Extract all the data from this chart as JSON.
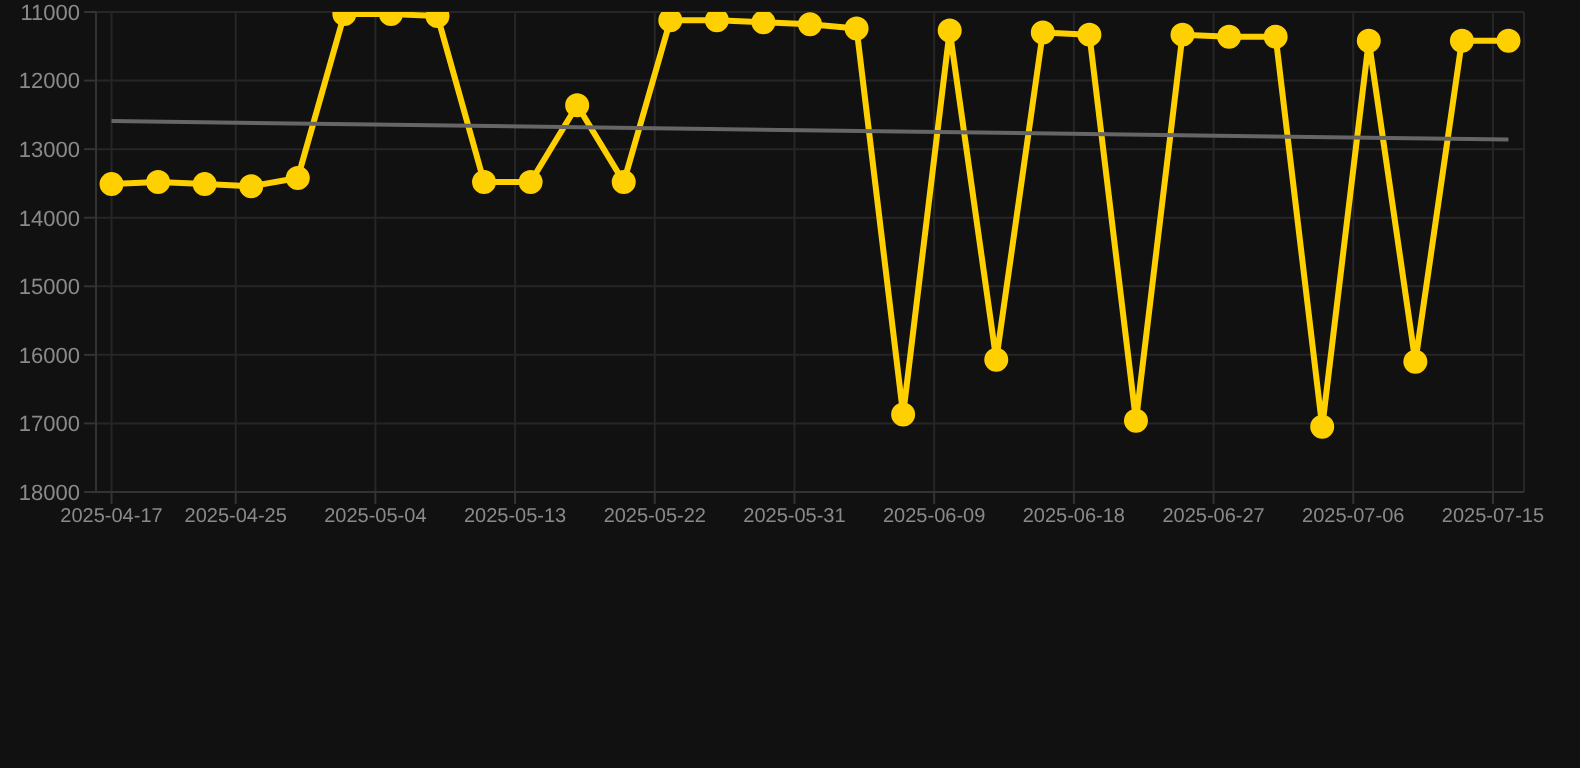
{
  "chart_data": {
    "type": "line",
    "x": [
      "2025-04-17",
      "2025-04-20",
      "2025-04-23",
      "2025-04-26",
      "2025-04-29",
      "2025-05-02",
      "2025-05-05",
      "2025-05-08",
      "2025-05-11",
      "2025-05-14",
      "2025-05-17",
      "2025-05-20",
      "2025-05-23",
      "2025-05-26",
      "2025-05-29",
      "2025-06-01",
      "2025-06-04",
      "2025-06-07",
      "2025-06-10",
      "2025-06-13",
      "2025-06-16",
      "2025-06-19",
      "2025-06-22",
      "2025-06-25",
      "2025-06-28",
      "2025-07-01",
      "2025-07-04",
      "2025-07-07",
      "2025-07-10",
      "2025-07-13",
      "2025-07-16"
    ],
    "series": [
      {
        "color": "#ffd000",
        "marker": "circle",
        "values": [
          13510,
          13480,
          13510,
          13540,
          13420,
          11030,
          11030,
          11060,
          13480,
          13480,
          12360,
          13480,
          11120,
          11120,
          11150,
          11180,
          11240,
          16870,
          11270,
          16070,
          11300,
          11330,
          16960,
          11330,
          11360,
          11360,
          17050,
          11420,
          16100,
          11420,
          11420
        ]
      },
      {
        "type": "line",
        "color": "#666666",
        "marker": "none",
        "x": [
          "2025-04-17",
          "2025-07-16"
        ],
        "values": [
          12590,
          12860
        ]
      }
    ],
    "xlim": [
      "2025-04-16",
      "2025-07-17"
    ],
    "xticks": [
      "2025-04-17",
      "2025-04-25",
      "2025-05-04",
      "2025-05-13",
      "2025-05-22",
      "2025-05-31",
      "2025-06-09",
      "2025-06-18",
      "2025-06-27",
      "2025-07-06",
      "2025-07-15"
    ],
    "ylim": [
      18000,
      11000
    ],
    "yticks": [
      11000,
      12000,
      13000,
      14000,
      15000,
      16000,
      17000,
      18000
    ],
    "grid": true,
    "line_style": "solid"
  }
}
